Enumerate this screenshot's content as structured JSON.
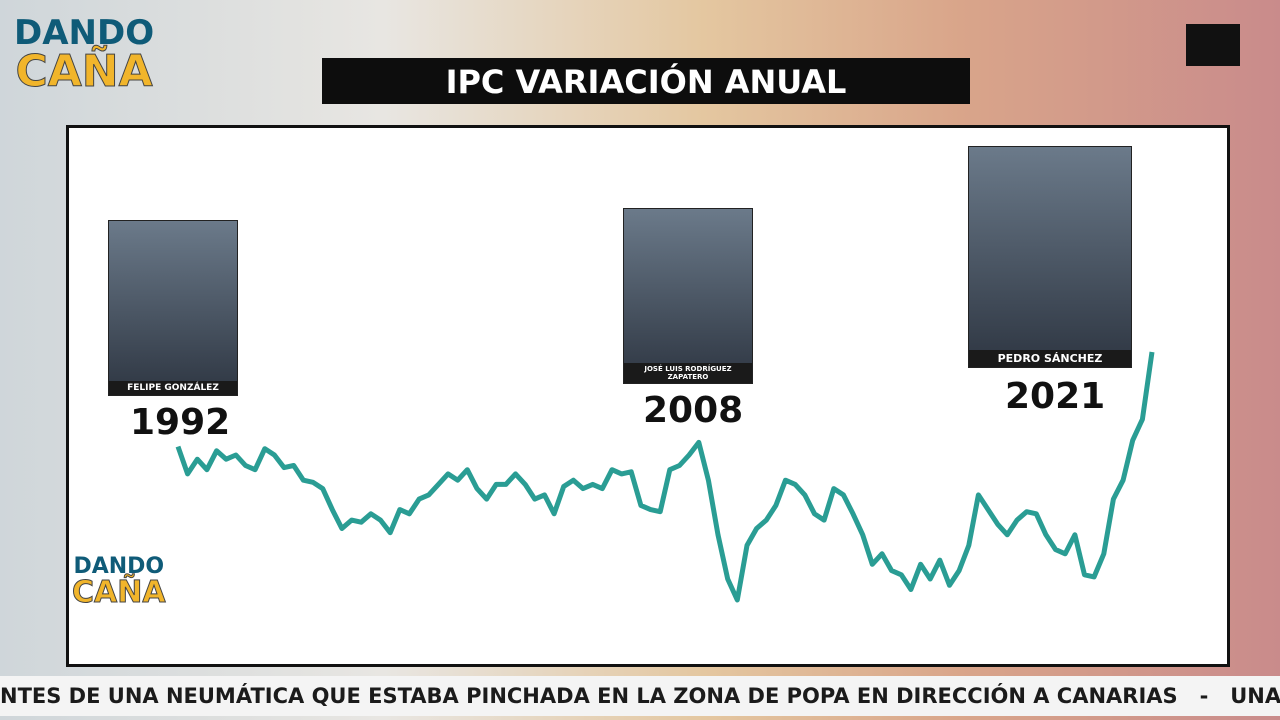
{
  "chart_data": {
    "type": "line",
    "title": "IPC VARIACIÓN ANUAL",
    "color": "#2a9d94",
    "values": [
      5.9,
      4.6,
      5.3,
      4.8,
      5.7,
      5.3,
      5.5,
      5.0,
      4.8,
      5.8,
      5.5,
      4.9,
      5.0,
      4.3,
      4.2,
      3.9,
      2.9,
      2.0,
      2.4,
      2.3,
      2.7,
      2.4,
      1.8,
      2.9,
      2.7,
      3.4,
      3.6,
      4.1,
      4.6,
      4.3,
      4.8,
      3.9,
      3.4,
      4.1,
      4.1,
      4.6,
      4.1,
      3.4,
      3.6,
      2.7,
      4.0,
      4.3,
      3.9,
      4.1,
      3.9,
      4.8,
      4.6,
      4.7,
      3.1,
      2.9,
      2.8,
      4.8,
      5.0,
      5.5,
      6.1,
      4.3,
      1.7,
      -0.4,
      -1.4,
      1.2,
      2.0,
      2.4,
      3.1,
      4.3,
      4.1,
      3.6,
      2.7,
      2.4,
      3.9,
      3.6,
      2.7,
      1.7,
      0.3,
      0.8,
      0.0,
      -0.2,
      -0.9,
      0.3,
      -0.4,
      0.5,
      -0.7,
      0.0,
      1.2,
      3.6,
      2.9,
      2.2,
      1.7,
      2.4,
      2.8,
      2.7,
      1.7,
      1.0,
      0.8,
      1.7,
      -0.2,
      -0.3,
      0.8,
      3.4,
      4.3,
      6.2,
      7.2,
      10.4
    ],
    "annotations": [
      {
        "year": "1992",
        "name": "FELIPE GONZÁLEZ"
      },
      {
        "year": "2008",
        "name": "JOSÉ LUIS RODRÍGUEZ ZAPATERO"
      },
      {
        "year": "2021",
        "name": "PEDRO SÁNCHEZ"
      }
    ]
  },
  "logo": {
    "line1": "DANDO",
    "line2": "CAÑA"
  },
  "ticker": "NTES DE UNA NEUMÁTICA QUE ESTABA PINCHADA EN LA ZONA DE POPA EN DIRECCIÓN A CANARIAS   -   UNA DOCEN"
}
